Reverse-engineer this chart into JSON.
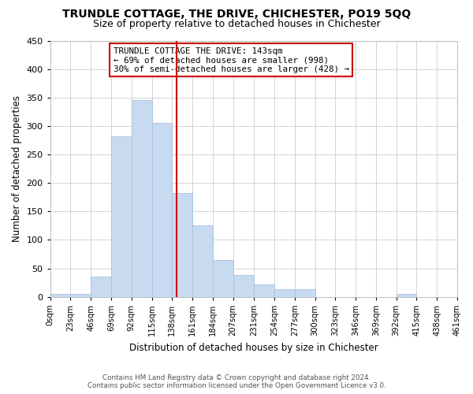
{
  "title": "TRUNDLE COTTAGE, THE DRIVE, CHICHESTER, PO19 5QQ",
  "subtitle": "Size of property relative to detached houses in Chichester",
  "xlabel": "Distribution of detached houses by size in Chichester",
  "ylabel": "Number of detached properties",
  "bar_color": "#c8daf0",
  "bar_edge_color": "#a8c0de",
  "background_color": "#ffffff",
  "grid_color": "#cccccc",
  "bin_edges": [
    0,
    23,
    46,
    69,
    92,
    115,
    138,
    161,
    184,
    207,
    231,
    254,
    277,
    300,
    323,
    346,
    369,
    392,
    415,
    438,
    461
  ],
  "bin_labels": [
    "0sqm",
    "23sqm",
    "46sqm",
    "69sqm",
    "92sqm",
    "115sqm",
    "138sqm",
    "161sqm",
    "184sqm",
    "207sqm",
    "231sqm",
    "254sqm",
    "277sqm",
    "300sqm",
    "323sqm",
    "346sqm",
    "369sqm",
    "392sqm",
    "415sqm",
    "438sqm",
    "461sqm"
  ],
  "counts": [
    5,
    5,
    36,
    282,
    345,
    305,
    182,
    125,
    65,
    38,
    22,
    14,
    14,
    0,
    0,
    0,
    0,
    5,
    0,
    0
  ],
  "property_size": 143,
  "vline_color": "#cc0000",
  "annotation_box_edge_color": "#cc0000",
  "annotation_line1": "TRUNDLE COTTAGE THE DRIVE: 143sqm",
  "annotation_line2": "← 69% of detached houses are smaller (998)",
  "annotation_line3": "30% of semi-detached houses are larger (428) →",
  "footer_line1": "Contains HM Land Registry data © Crown copyright and database right 2024.",
  "footer_line2": "Contains public sector information licensed under the Open Government Licence v3.0.",
  "ylim": [
    0,
    450
  ],
  "yticks": [
    0,
    50,
    100,
    150,
    200,
    250,
    300,
    350,
    400,
    450
  ]
}
